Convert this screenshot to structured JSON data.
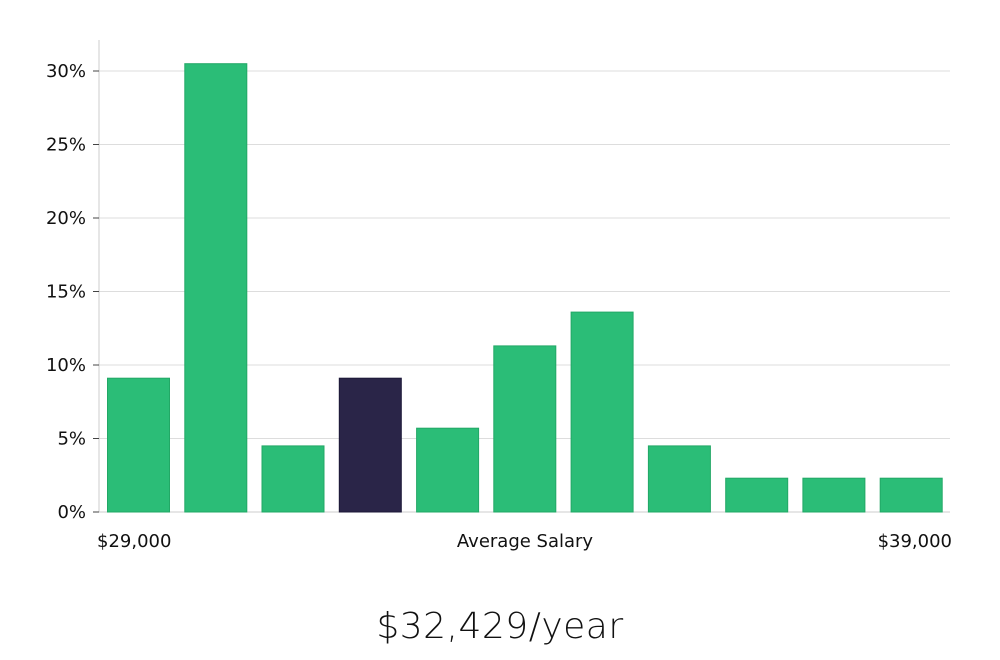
{
  "chart_data": {
    "type": "bar",
    "xlabel": "Average Salary",
    "x_range_labels": [
      "$29,000",
      "$39,000"
    ],
    "y_ticks": [
      "0%",
      "5%",
      "10%",
      "15%",
      "20%",
      "25%",
      "30%"
    ],
    "ylim": [
      0,
      32
    ],
    "grid": true,
    "values": [
      9.1,
      30.5,
      4.5,
      9.1,
      5.7,
      11.3,
      13.6,
      4.5,
      2.3,
      2.3,
      2.3
    ],
    "highlight_index": 3,
    "colors": {
      "bar": "#2bbd77",
      "highlight": "#2a2548",
      "grid": "#dddddd",
      "axis": "#cccccc"
    }
  },
  "summary": {
    "salary_text": "$32,429/year"
  }
}
